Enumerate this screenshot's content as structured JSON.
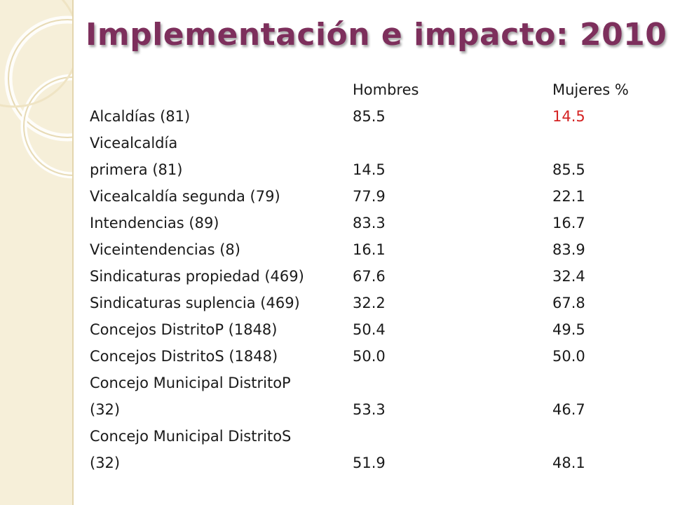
{
  "slide": {
    "title": "Implementación e impacto: 2010",
    "colors": {
      "title": "#7d2f5c",
      "side_band": "#f6efd9",
      "body_text": "#1a1a1a",
      "highlight": "#d42222"
    },
    "table": {
      "header": {
        "col1": "",
        "col2": "Hombres",
        "col3": "Mujeres %"
      },
      "rows": [
        {
          "label": "Alcaldías (81)",
          "hombres": "85.5",
          "mujeres": "14.5",
          "mujeres_highlight": true
        },
        {
          "label": "Vicealcaldía",
          "hombres": "",
          "mujeres": ""
        },
        {
          "label": "primera (81)",
          "hombres": "14.5",
          "mujeres": "85.5"
        },
        {
          "label": "Vicealcaldía segunda (79)",
          "hombres": "77.9",
          "mujeres": "22.1"
        },
        {
          "label": "Intendencias (89)",
          "hombres": "83.3",
          "mujeres": "16.7"
        },
        {
          "label": "Viceintendencias (8)",
          "hombres": "16.1",
          "mujeres": "83.9"
        },
        {
          "label": "Sindicaturas propiedad (469)",
          "hombres": "67.6",
          "mujeres": "32.4"
        },
        {
          "label": "Sindicaturas suplencia (469)",
          "hombres": "32.2",
          "mujeres": "67.8"
        },
        {
          "label": "Concejos DistritoP (1848)",
          "hombres": "50.4",
          "mujeres": "49.5"
        },
        {
          "label": "Concejos DistritoS (1848)",
          "hombres": "50.0",
          "mujeres": "50.0"
        },
        {
          "label": "Concejo Municipal DistritoP",
          "hombres": "",
          "mujeres": ""
        },
        {
          "label": "(32)",
          "hombres": "53.3",
          "mujeres": "46.7"
        },
        {
          "label": "Concejo Municipal DistritoS",
          "hombres": "",
          "mujeres": ""
        },
        {
          "label": "(32)",
          "hombres": "51.9",
          "mujeres": "48.1"
        }
      ]
    }
  }
}
